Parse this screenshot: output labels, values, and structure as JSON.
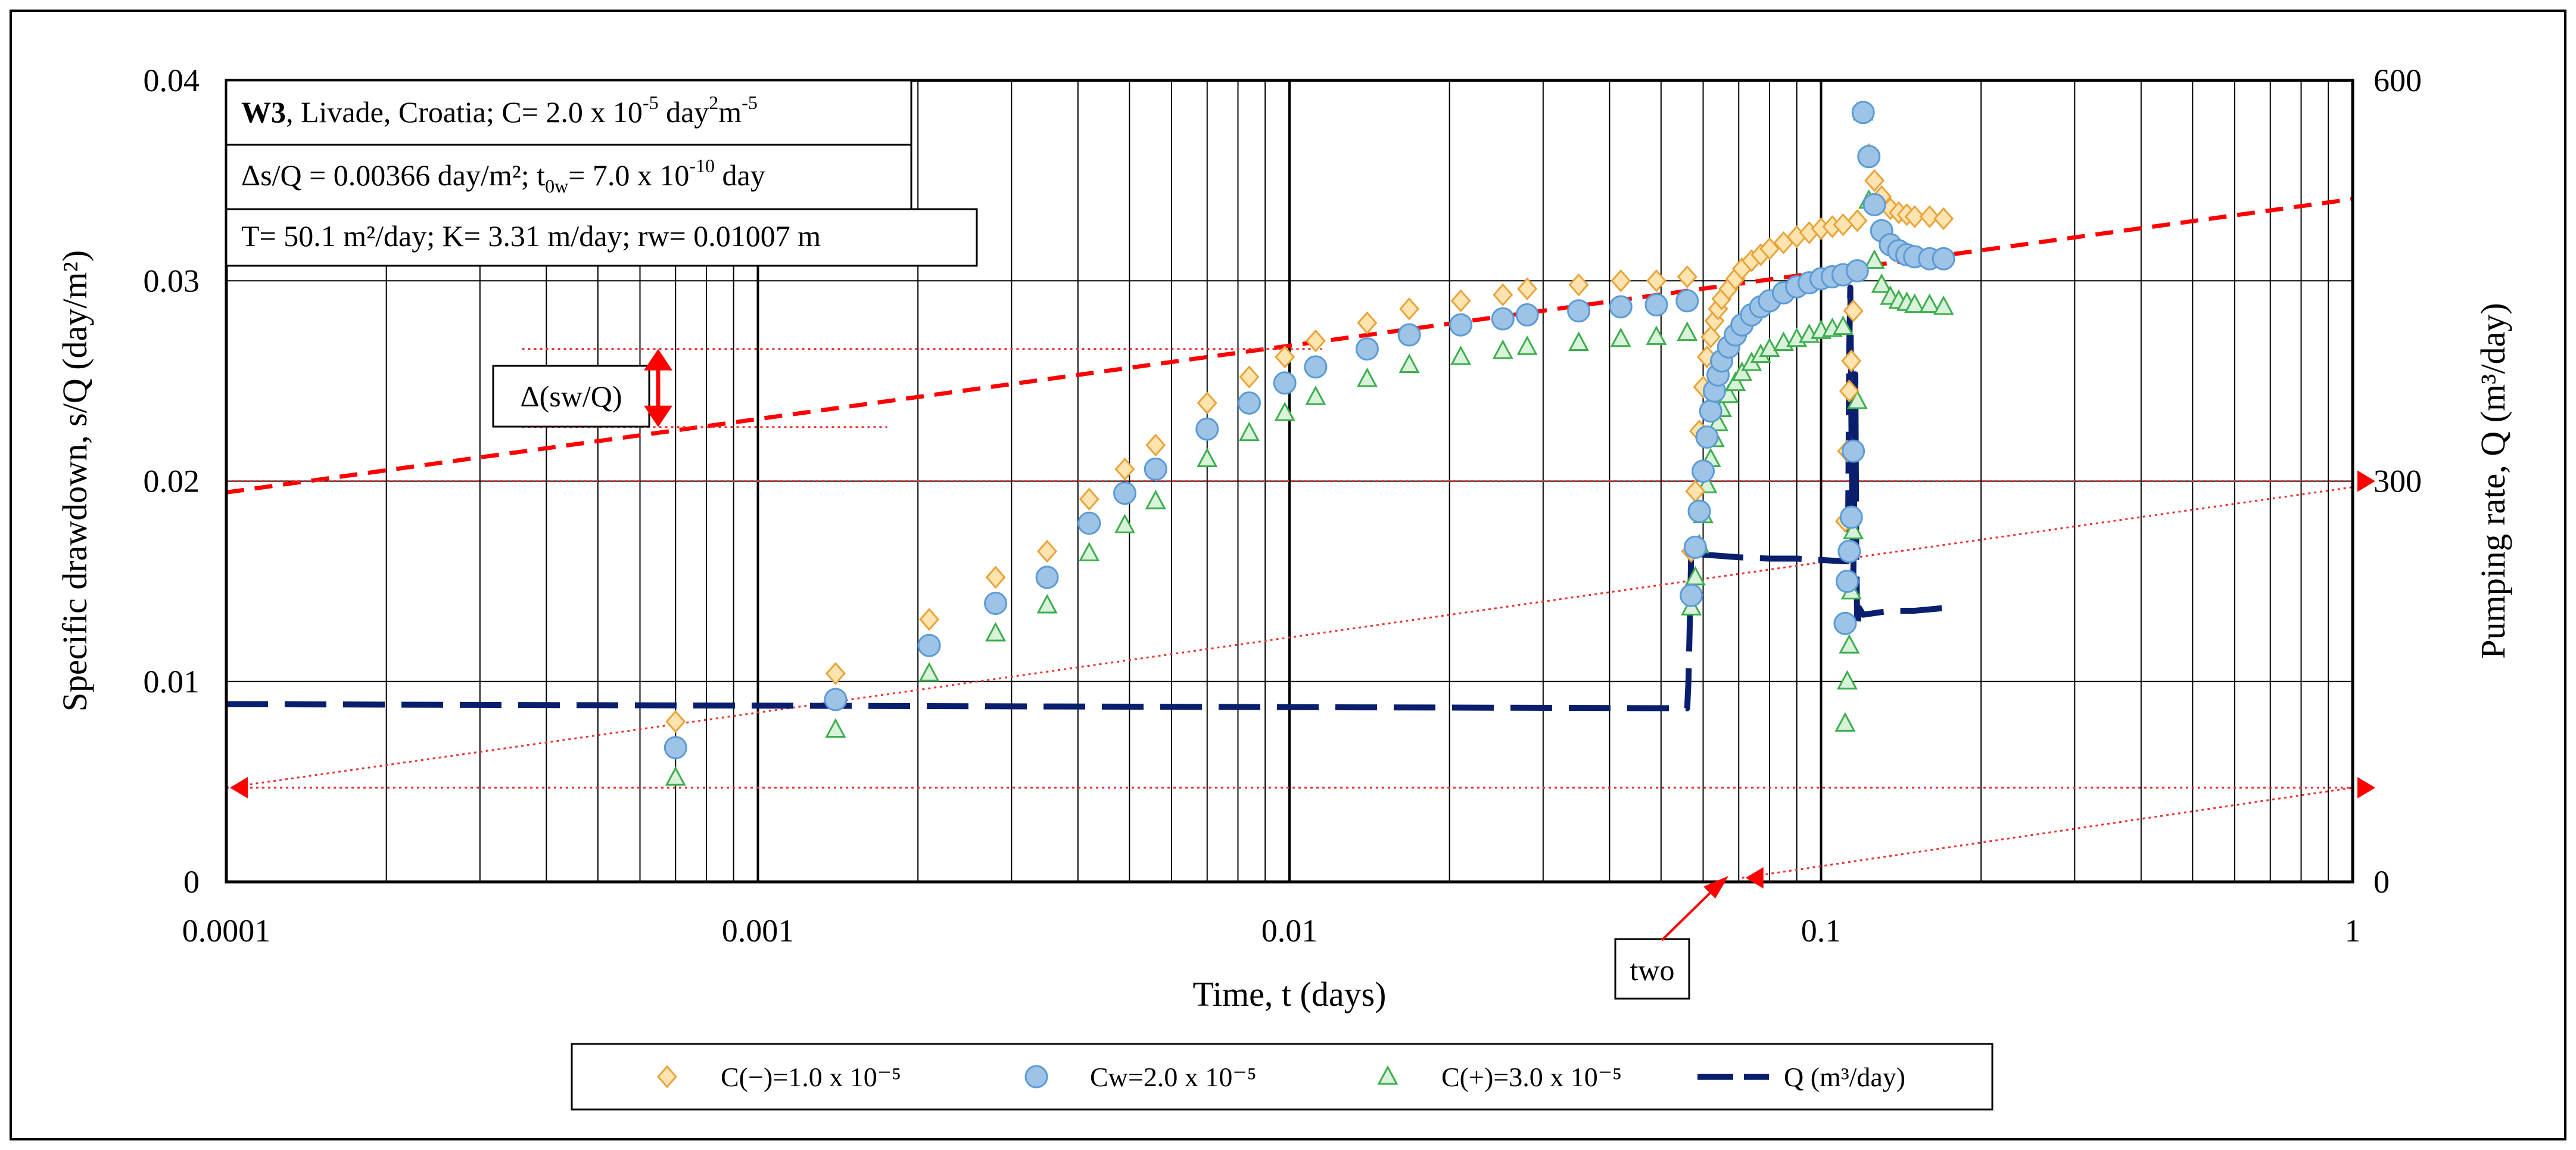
{
  "chart_data": {
    "type": "scatter",
    "title": "",
    "xlabel": "Time, t (days)",
    "ylabel": "Specific drawdown, s/Q (day/m²)",
    "y2label": "Pumping rate, Q (m³/day)",
    "xscale": "log",
    "xlim": [
      0.0001,
      1
    ],
    "ylim": [
      0,
      0.04
    ],
    "y2lim": [
      0,
      600
    ],
    "x_ticks": [
      0.0001,
      0.001,
      0.01,
      0.1,
      1
    ],
    "x_tick_labels": [
      "0.0001",
      "0.001",
      "0.01",
      "0.1",
      "1"
    ],
    "y_ticks": [
      0,
      0.01,
      0.02,
      0.03,
      0.04
    ],
    "y_tick_labels": [
      "0",
      "0.01",
      "0.02",
      "0.03",
      "0.04"
    ],
    "y2_ticks": [
      0,
      300,
      600
    ],
    "y2_tick_labels": [
      "0",
      "300",
      "600"
    ],
    "grid": true,
    "legend_position": "bottom",
    "info_box": {
      "line1_bold": "W3",
      "line1": ", Livade, Croatia; C= 2.0 x 10",
      "line1_sup": "-5",
      "line1_unit": " day",
      "line1_sup2": "2",
      "line1_unit2": "m",
      "line1_sup3": "-5",
      "line2": "Δs/Q = 0.00366 day/m²; t",
      "line2_sub": "0w",
      "line2_b": "= 7.0 x 10",
      "line2_sup": "-10",
      "line2_c": " day",
      "line3": "T= 50.1 m²/day; K= 3.31 m/day; rw= 0.01007 m"
    },
    "annotations": {
      "delta_label": "Δ(sw/Q)",
      "two_label": "two"
    },
    "series": [
      {
        "name": "C(−)=1.0 x 10⁻⁵",
        "marker": "diamond",
        "color": "#E8A33A",
        "fill": "#FFE4B0",
        "x": [
          0.0007,
          0.0014,
          0.0021,
          0.0028,
          0.0035,
          0.0042,
          0.0049,
          0.0056,
          0.007,
          0.0084,
          0.0098,
          0.0112,
          0.014,
          0.0168,
          0.021,
          0.0252,
          0.028,
          0.035,
          0.042,
          0.049,
          0.056,
          0.057,
          0.058,
          0.059,
          0.06,
          0.061,
          0.062,
          0.063,
          0.064,
          0.065,
          0.067,
          0.069,
          0.071,
          0.074,
          0.077,
          0.08,
          0.085,
          0.09,
          0.095,
          0.1,
          0.105,
          0.11,
          0.111,
          0.112,
          0.113,
          0.114,
          0.115,
          0.117,
          0.12,
          0.123,
          0.126,
          0.13,
          0.135,
          0.14,
          0.145,
          0.15,
          0.16,
          0.17
        ],
        "y": [
          0.008,
          0.0104,
          0.0131,
          0.0152,
          0.0165,
          0.0191,
          0.0206,
          0.0218,
          0.0239,
          0.0252,
          0.0262,
          0.027,
          0.0279,
          0.0286,
          0.029,
          0.0293,
          0.0296,
          0.0298,
          0.03,
          0.03,
          0.0302,
          0.0165,
          0.0195,
          0.0225,
          0.0247,
          0.0262,
          0.0272,
          0.028,
          0.0286,
          0.0291,
          0.0296,
          0.0301,
          0.0306,
          0.031,
          0.0313,
          0.0316,
          0.0319,
          0.0322,
          0.0324,
          0.0326,
          0.0327,
          0.0328,
          0.018,
          0.0215,
          0.0245,
          0.026,
          0.0285,
          0.033,
          0.0384,
          0.0363,
          0.035,
          0.0342,
          0.0336,
          0.0334,
          0.0333,
          0.0332,
          0.0332,
          0.0331
        ]
      },
      {
        "name": "Cw=2.0 x 10⁻⁵",
        "marker": "circle",
        "color": "#5B9BD5",
        "fill": "#9DC3E6",
        "x": [
          0.0007,
          0.0014,
          0.0021,
          0.0028,
          0.0035,
          0.0042,
          0.0049,
          0.0056,
          0.007,
          0.0084,
          0.0098,
          0.0112,
          0.014,
          0.0168,
          0.021,
          0.0252,
          0.028,
          0.035,
          0.042,
          0.049,
          0.056,
          0.057,
          0.058,
          0.059,
          0.06,
          0.061,
          0.062,
          0.063,
          0.064,
          0.065,
          0.067,
          0.069,
          0.071,
          0.074,
          0.077,
          0.08,
          0.085,
          0.09,
          0.095,
          0.1,
          0.105,
          0.11,
          0.111,
          0.112,
          0.113,
          0.114,
          0.115,
          0.117,
          0.12,
          0.123,
          0.126,
          0.13,
          0.135,
          0.14,
          0.145,
          0.15,
          0.16,
          0.17
        ],
        "y": [
          0.0067,
          0.0091,
          0.0118,
          0.0139,
          0.0152,
          0.0179,
          0.0194,
          0.0206,
          0.0226,
          0.0239,
          0.0249,
          0.0257,
          0.0266,
          0.0273,
          0.0278,
          0.0281,
          0.0283,
          0.0285,
          0.0287,
          0.0288,
          0.029,
          0.0143,
          0.0167,
          0.0185,
          0.0205,
          0.0222,
          0.0235,
          0.0245,
          0.0253,
          0.026,
          0.0267,
          0.0273,
          0.0278,
          0.0283,
          0.0287,
          0.029,
          0.0294,
          0.0297,
          0.0299,
          0.0301,
          0.0302,
          0.0303,
          0.0129,
          0.015,
          0.0165,
          0.0182,
          0.0215,
          0.0305,
          0.0384,
          0.0362,
          0.0338,
          0.0325,
          0.0318,
          0.0315,
          0.0313,
          0.0312,
          0.0311,
          0.0311
        ]
      },
      {
        "name": "C(+)=3.0 x 10⁻⁵",
        "marker": "triangle",
        "color": "#3DAE4E",
        "fill": "#D9F2D9",
        "x": [
          0.0007,
          0.0014,
          0.0021,
          0.0028,
          0.0035,
          0.0042,
          0.0049,
          0.0056,
          0.007,
          0.0084,
          0.0098,
          0.0112,
          0.014,
          0.0168,
          0.021,
          0.0252,
          0.028,
          0.035,
          0.042,
          0.049,
          0.056,
          0.057,
          0.058,
          0.059,
          0.06,
          0.061,
          0.062,
          0.063,
          0.064,
          0.065,
          0.067,
          0.069,
          0.071,
          0.074,
          0.077,
          0.08,
          0.085,
          0.09,
          0.095,
          0.1,
          0.105,
          0.11,
          0.111,
          0.112,
          0.113,
          0.114,
          0.115,
          0.117,
          0.12,
          0.123,
          0.126,
          0.13,
          0.135,
          0.14,
          0.145,
          0.15,
          0.16,
          0.17
        ],
        "y": [
          0.0052,
          0.0076,
          0.0104,
          0.0124,
          0.0138,
          0.0164,
          0.0178,
          0.019,
          0.0211,
          0.0224,
          0.0234,
          0.0242,
          0.0251,
          0.0258,
          0.0262,
          0.0265,
          0.0267,
          0.0269,
          0.0271,
          0.0272,
          0.0274,
          0.0137,
          0.0152,
          0.0168,
          0.0183,
          0.0198,
          0.0211,
          0.0221,
          0.0229,
          0.0236,
          0.0243,
          0.0249,
          0.0254,
          0.0259,
          0.0263,
          0.0266,
          0.0269,
          0.0271,
          0.0273,
          0.0275,
          0.0276,
          0.0277,
          0.0079,
          0.01,
          0.0118,
          0.0145,
          0.0175,
          0.024,
          0.0384,
          0.034,
          0.031,
          0.0298,
          0.0292,
          0.029,
          0.0289,
          0.0288,
          0.0288,
          0.0287
        ]
      },
      {
        "name": "Q (m³/day)",
        "marker": "dashed-line",
        "color": "#0A1E6E",
        "axis": "right",
        "x": [
          0.0001,
          0.00011,
          0.055,
          0.056,
          0.0563,
          0.0566,
          0.057,
          0.058,
          0.06,
          0.07,
          0.08,
          0.09,
          0.1,
          0.11,
          0.112,
          0.1125,
          0.113,
          0.1135,
          0.114,
          0.1145,
          0.115,
          0.1155,
          0.116,
          0.1165,
          0.117,
          0.118,
          0.12,
          0.13,
          0.14,
          0.15,
          0.16,
          0.17
        ],
        "y": [
          133,
          133,
          130,
          130,
          150,
          190,
          250,
          246,
          245,
          243,
          242,
          242,
          241,
          240,
          240,
          280,
          400,
          445,
          350,
          280,
          230,
          300,
          380,
          240,
          190,
          205,
          200,
          202,
          203,
          203,
          204,
          205
        ]
      }
    ],
    "guide_lines": [
      {
        "name": "semilog-fit",
        "style": "dashed",
        "color": "#FF0000",
        "x": [
          0.0001,
          1
        ],
        "y": [
          0.01944,
          0.03408
        ]
      },
      {
        "name": "upper-bound",
        "style": "dotted",
        "color": "#E83030",
        "x": [
          0.0001,
          1
        ],
        "y": [
          0.02,
          0.02
        ],
        "arrow_end": true
      },
      {
        "name": "mid-diagonal",
        "style": "dotted",
        "color": "#E83030",
        "x": [
          0.0001,
          1
        ],
        "y": [
          0.0047,
          0.0197
        ]
      },
      {
        "name": "lower-bound",
        "style": "dotted",
        "color": "#E83030",
        "x": [
          0.0001,
          1
        ],
        "y": [
          0.0047,
          0.0047
        ],
        "arrow_start": true,
        "arrow_end": true
      },
      {
        "name": "lower-diagonal",
        "style": "dotted",
        "color": "#E83030",
        "x": [
          0.071,
          1
        ],
        "y": [
          0.0002,
          0.0047
        ],
        "arrow_start": true
      },
      {
        "name": "delta-top",
        "style": "dotted",
        "color": "#E83030",
        "x": [
          0.00036,
          0.0115
        ],
        "y": [
          0.0266,
          0.0266
        ]
      },
      {
        "name": "delta-bottom",
        "style": "dotted",
        "color": "#E83030",
        "x": [
          0.00036,
          0.00175
        ],
        "y": [
          0.0227,
          0.0227
        ]
      }
    ]
  }
}
